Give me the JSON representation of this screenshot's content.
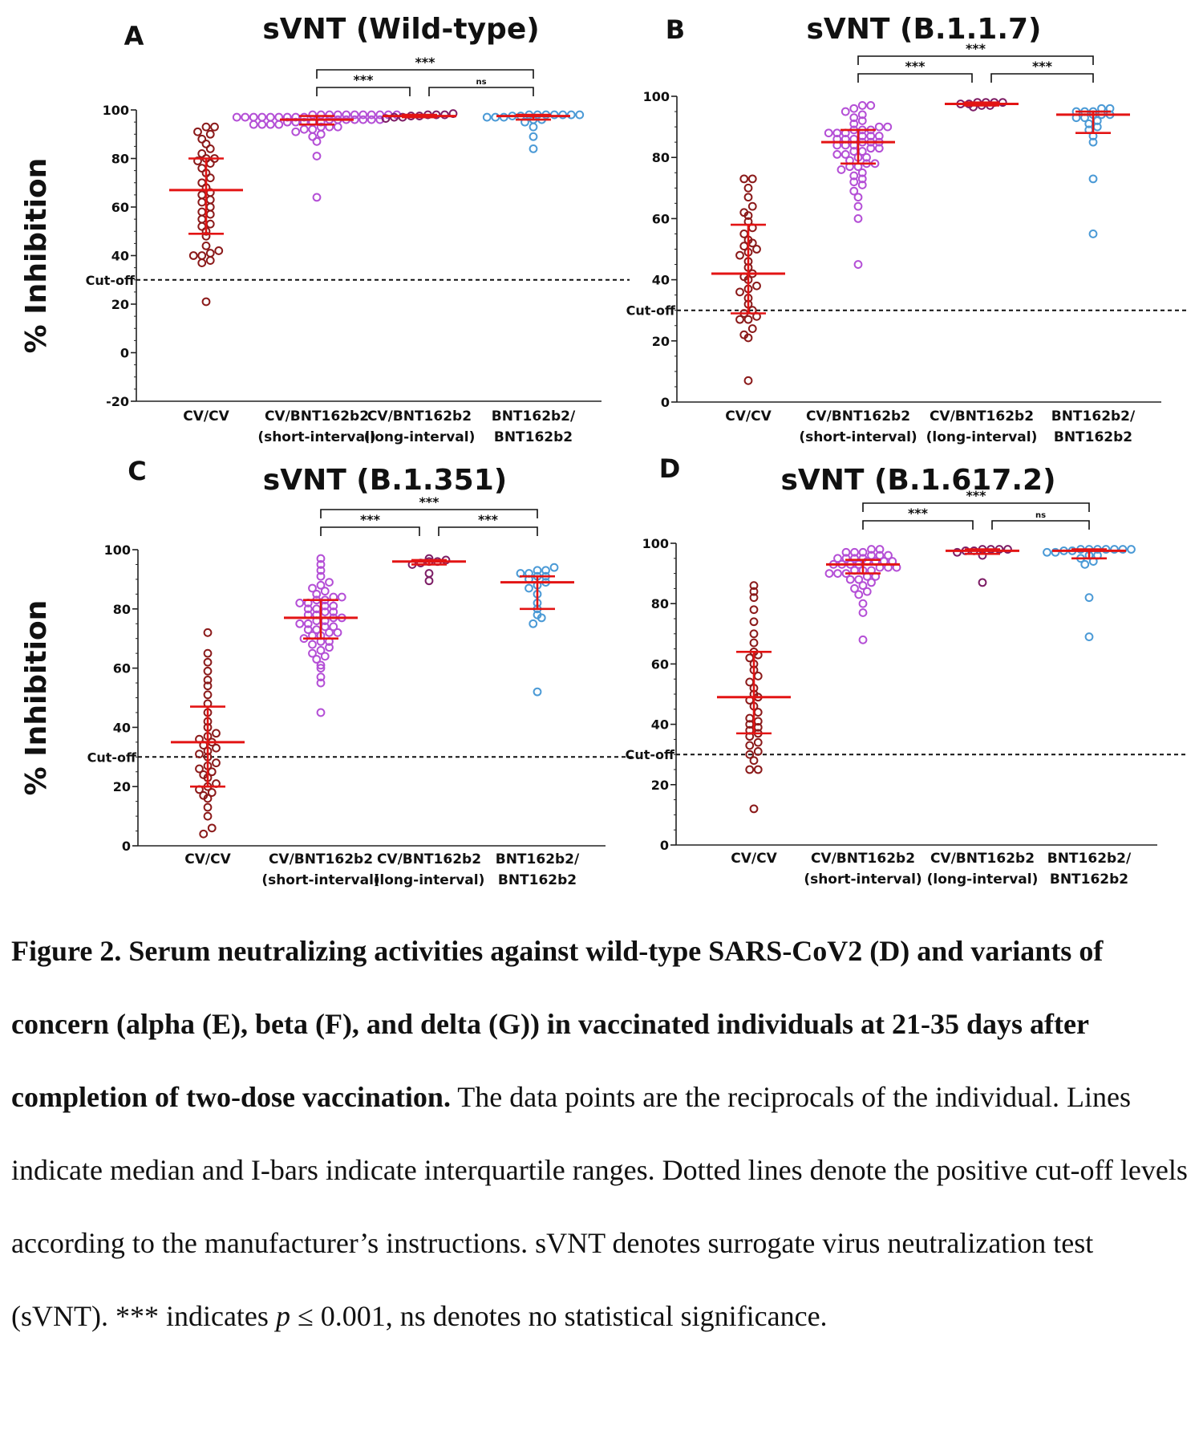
{
  "colors": {
    "cv_cv": "#8b1a1a",
    "short_interval": "#b44fd6",
    "long_interval": "#7d1e66",
    "bnt_bnt": "#4b9ad6",
    "median_bar": "#e31414",
    "axis": "#222222"
  },
  "chart_data": [
    {
      "type": "scatter",
      "panel_letter": "A",
      "title": "sVNT (Wild-type)",
      "ylabel": "% Inhibition",
      "ylim": [
        -20,
        100
      ],
      "yticks": [
        -20,
        0,
        20,
        40,
        60,
        80,
        100
      ],
      "cutoff": {
        "value": 30,
        "label": "Cut-off"
      },
      "categories": [
        {
          "line1": "CV/CV",
          "line2": ""
        },
        {
          "line1": "CV/BNT162b2",
          "line2": "(short-interval)"
        },
        {
          "line1": "CV/BNT162b2",
          "line2": "(long-interval)"
        },
        {
          "line1": "BNT162b2/",
          "line2": "BNT162b2"
        }
      ],
      "groups": [
        {
          "median": 67,
          "q1": 49,
          "q3": 80,
          "values": [
            21,
            37,
            38,
            40,
            40,
            41,
            42,
            44,
            48,
            50,
            52,
            53,
            55,
            57,
            58,
            60,
            62,
            63,
            65,
            66,
            68,
            70,
            72,
            74,
            76,
            78,
            79,
            80,
            80,
            82,
            84,
            86,
            88,
            90,
            91,
            93,
            93
          ]
        },
        {
          "median": 96,
          "q1": 94,
          "q3": 97.5,
          "values": [
            64,
            81,
            87,
            89,
            90,
            91,
            92,
            92,
            93,
            93,
            93,
            94,
            94,
            94,
            94,
            95,
            95,
            95,
            95,
            95,
            96,
            96,
            96,
            96,
            96,
            96,
            96,
            97,
            97,
            97,
            97,
            97,
            97,
            97,
            97,
            97,
            98,
            98,
            98,
            98,
            98,
            98,
            98,
            98,
            98,
            98,
            98
          ]
        },
        {
          "median": 97.5,
          "q1": 97,
          "q3": 98,
          "values": [
            96.5,
            97,
            97,
            97.5,
            97.5,
            98,
            98,
            98,
            98.5
          ]
        },
        {
          "median": 97.5,
          "q1": 96,
          "q3": 98,
          "values": [
            84,
            89,
            93,
            95,
            96,
            96,
            97,
            97,
            97,
            97.5,
            97.5,
            98,
            98,
            98,
            98,
            98,
            98,
            98
          ]
        }
      ],
      "brackets": [
        {
          "from": 1,
          "to": 2,
          "label": "***",
          "level": 1
        },
        {
          "from": 2,
          "to": 3,
          "label": "ns",
          "level": 1
        },
        {
          "from": 1,
          "to": 3,
          "label": "***",
          "level": 2
        }
      ]
    },
    {
      "type": "scatter",
      "panel_letter": "B",
      "title": "sVNT (B.1.1.7)",
      "ylabel": "",
      "ylim": [
        0,
        100
      ],
      "yticks": [
        0,
        20,
        40,
        60,
        80,
        100
      ],
      "cutoff": {
        "value": 30,
        "label": "Cut-off"
      },
      "categories": [
        {
          "line1": "CV/CV",
          "line2": ""
        },
        {
          "line1": "CV/BNT162b2",
          "line2": "(short-interval)"
        },
        {
          "line1": "CV/BNT162b2",
          "line2": "(long-interval)"
        },
        {
          "line1": "BNT162b2/",
          "line2": "BNT162b2"
        }
      ],
      "groups": [
        {
          "median": 42,
          "q1": 29,
          "q3": 58,
          "values": [
            7,
            21,
            22,
            24,
            27,
            27,
            28,
            29,
            30,
            32,
            34,
            36,
            37,
            38,
            40,
            41,
            42,
            44,
            46,
            48,
            49,
            50,
            51,
            52,
            53,
            55,
            57,
            59,
            61,
            62,
            64,
            67,
            70,
            73,
            73
          ]
        },
        {
          "median": 85,
          "q1": 78,
          "q3": 89,
          "values": [
            45,
            60,
            64,
            67,
            69,
            71,
            72,
            73,
            74,
            75,
            76,
            77,
            77,
            78,
            78,
            79,
            80,
            80,
            81,
            81,
            82,
            82,
            83,
            83,
            84,
            84,
            84,
            85,
            85,
            85,
            86,
            86,
            86,
            87,
            87,
            87,
            88,
            88,
            88,
            89,
            89,
            89,
            90,
            90,
            91,
            92,
            93,
            94,
            95,
            96,
            97,
            97
          ]
        },
        {
          "median": 97.5,
          "q1": 97,
          "q3": 98,
          "values": [
            96.5,
            97,
            97,
            97.5,
            97.5,
            98,
            98,
            98,
            98
          ]
        },
        {
          "median": 94,
          "q1": 88,
          "q3": 95,
          "values": [
            55,
            73,
            85,
            87,
            89,
            90,
            91,
            92,
            93,
            93,
            94,
            94,
            94,
            95,
            95,
            95,
            96,
            96
          ]
        }
      ],
      "brackets": [
        {
          "from": 1,
          "to": 2,
          "label": "***",
          "level": 1
        },
        {
          "from": 2,
          "to": 3,
          "label": "***",
          "level": 1
        },
        {
          "from": 1,
          "to": 3,
          "label": "***",
          "level": 2
        }
      ]
    },
    {
      "type": "scatter",
      "panel_letter": "C",
      "title": "sVNT (B.1.351)",
      "ylabel": "% Inhibition",
      "ylim": [
        0,
        100
      ],
      "yticks": [
        0,
        20,
        40,
        60,
        80,
        100
      ],
      "cutoff": {
        "value": 30,
        "label": "Cut-off"
      },
      "categories": [
        {
          "line1": "CV/CV",
          "line2": ""
        },
        {
          "line1": "CV/BNT162b2",
          "line2": "(short-interval)"
        },
        {
          "line1": "CV/BNT162b2",
          "line2": "(long-interval)"
        },
        {
          "line1": "BNT162b2/",
          "line2": "BNT162b2"
        }
      ],
      "groups": [
        {
          "median": 35,
          "q1": 20,
          "q3": 47,
          "values": [
            4,
            6,
            10,
            13,
            16,
            17,
            18,
            19,
            20,
            21,
            23,
            24,
            25,
            26,
            27,
            28,
            30,
            31,
            32,
            33,
            34,
            35,
            36,
            37,
            38,
            40,
            42,
            45,
            48,
            51,
            54,
            56,
            59,
            62,
            65,
            72
          ]
        },
        {
          "median": 77,
          "q1": 70,
          "q3": 83,
          "values": [
            45,
            55,
            57,
            60,
            61,
            63,
            64,
            65,
            66,
            67,
            68,
            69,
            69,
            70,
            71,
            71,
            72,
            72,
            73,
            73,
            74,
            74,
            75,
            75,
            76,
            76,
            77,
            77,
            78,
            78,
            79,
            79,
            80,
            80,
            81,
            81,
            82,
            82,
            83,
            83,
            84,
            84,
            85,
            86,
            87,
            88,
            89,
            91,
            93,
            95,
            97
          ]
        },
        {
          "median": 96,
          "q1": 95,
          "q3": 96.5,
          "values": [
            89.5,
            92,
            95,
            95.5,
            96,
            96,
            96.5,
            97
          ]
        },
        {
          "median": 89,
          "q1": 80,
          "q3": 91,
          "values": [
            52,
            75,
            77,
            78,
            80,
            82,
            85,
            87,
            88,
            89,
            90,
            91,
            91,
            92,
            92,
            93,
            93,
            94
          ]
        }
      ],
      "brackets": [
        {
          "from": 1,
          "to": 2,
          "label": "***",
          "level": 1
        },
        {
          "from": 2,
          "to": 3,
          "label": "***",
          "level": 1
        },
        {
          "from": 1,
          "to": 3,
          "label": "***",
          "level": 2
        }
      ]
    },
    {
      "type": "scatter",
      "panel_letter": "D",
      "title": "sVNT (B.1.617.2)",
      "ylabel": "",
      "ylim": [
        0,
        100
      ],
      "yticks": [
        0,
        20,
        40,
        60,
        80,
        100
      ],
      "cutoff": {
        "value": 30,
        "label": "Cut-off"
      },
      "categories": [
        {
          "line1": "CV/CV",
          "line2": ""
        },
        {
          "line1": "CV/BNT162b2",
          "line2": "(short-interval)"
        },
        {
          "line1": "CV/BNT162b2",
          "line2": "(long-interval)"
        },
        {
          "line1": "BNT162b2/",
          "line2": "BNT162b2"
        }
      ],
      "groups": [
        {
          "median": 49,
          "q1": 37,
          "q3": 64,
          "values": [
            12,
            25,
            25,
            28,
            30,
            31,
            33,
            34,
            36,
            37,
            38,
            39,
            40,
            41,
            42,
            44,
            46,
            48,
            49,
            50,
            52,
            54,
            56,
            58,
            60,
            62,
            63,
            64,
            67,
            70,
            74,
            78,
            82,
            84,
            86
          ]
        },
        {
          "median": 93,
          "q1": 90,
          "q3": 94.5,
          "values": [
            68,
            77,
            80,
            83,
            84,
            85,
            86,
            87,
            88,
            88,
            89,
            89,
            90,
            90,
            90,
            91,
            91,
            91,
            92,
            92,
            92,
            93,
            93,
            93,
            93,
            94,
            94,
            94,
            94,
            95,
            95,
            95,
            95,
            96,
            96,
            96,
            97,
            97,
            97,
            98,
            98
          ]
        },
        {
          "median": 97.5,
          "q1": 96.5,
          "q3": 98,
          "values": [
            87,
            96,
            97,
            97.5,
            97.5,
            98,
            98,
            98,
            98
          ]
        },
        {
          "median": 97.5,
          "q1": 95,
          "q3": 98,
          "values": [
            69,
            82,
            93,
            94,
            95,
            96,
            96,
            97,
            97,
            97.5,
            97.5,
            98,
            98,
            98,
            98,
            98,
            98,
            98
          ]
        }
      ],
      "brackets": [
        {
          "from": 1,
          "to": 2,
          "label": "***",
          "level": 1
        },
        {
          "from": 2,
          "to": 3,
          "label": "ns",
          "level": 1
        },
        {
          "from": 1,
          "to": 3,
          "label": "***",
          "level": 2
        }
      ]
    }
  ],
  "caption": {
    "title": "Figure 2. Serum neutralizing activities against wild-type SARS-CoV2 (D) and variants of concern (alpha (E), beta (F), and delta (G)) in vaccinated individuals at 21-35 days after completion of two-dose vaccination.",
    "text1": " The data points are the reciprocals of the individual. Lines indicate median and I-bars indicate interquartile ranges. Dotted lines denote the positive cut-off levels according to the manufacturer’s instructions. sVNT denotes surrogate virus neutralization test (sVNT). *** indicates ",
    "p_symbol": "p",
    "text2": " ≤ 0.001, ns denotes no statistical significance."
  }
}
